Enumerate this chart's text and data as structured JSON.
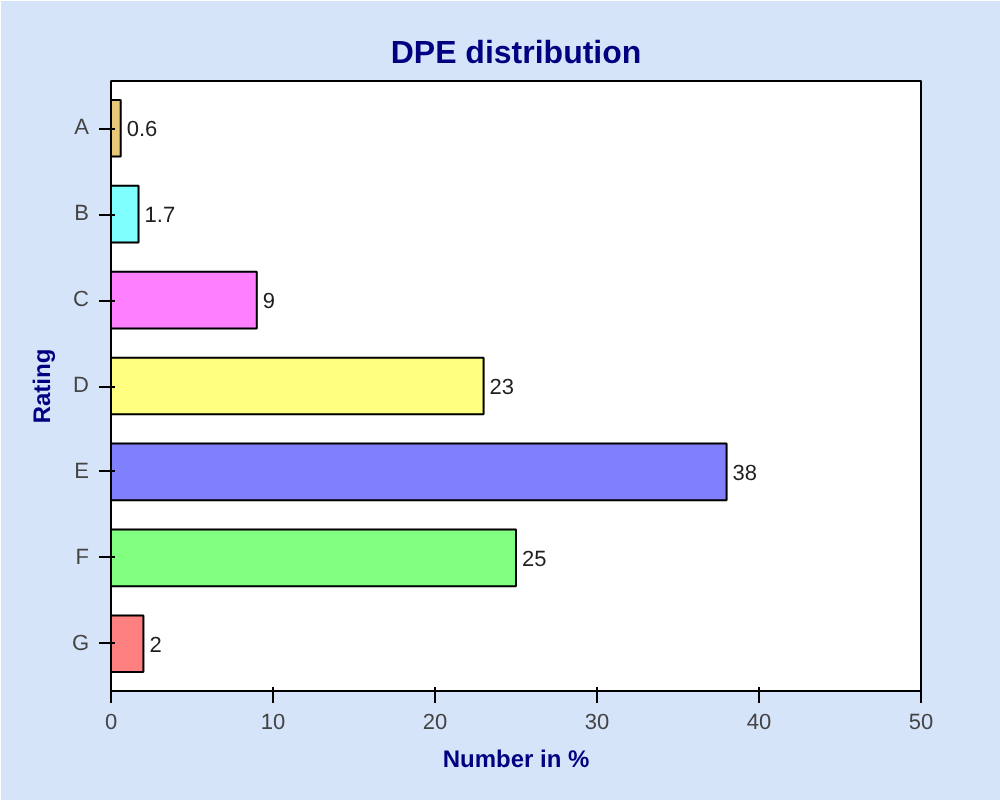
{
  "chart_data": {
    "type": "bar",
    "orientation": "horizontal",
    "title": "DPE distribution",
    "xlabel": "Number in %",
    "ylabel": "Rating",
    "categories": [
      "A",
      "B",
      "C",
      "D",
      "E",
      "F",
      "G"
    ],
    "values": [
      0.6,
      1.7,
      9,
      23,
      38,
      25,
      2
    ],
    "colors": [
      "#e8c878",
      "#80ffff",
      "#ff80ff",
      "#ffff80",
      "#8080ff",
      "#80ff80",
      "#ff8080"
    ],
    "xlim": [
      0,
      50
    ],
    "xticks": [
      0,
      10,
      20,
      30,
      40,
      50
    ],
    "grid": false,
    "data_labels": true
  }
}
